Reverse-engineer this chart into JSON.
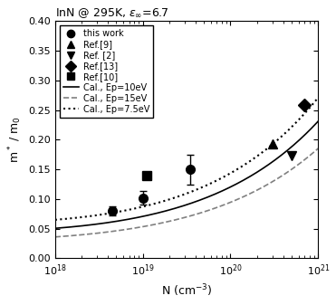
{
  "title": "InN @ 295K, $\\varepsilon_{\\infty}$=6.7",
  "xlabel": "N (cm$^{-3}$)",
  "ylabel": "m* / m$_0$",
  "xlim": [
    1e+18,
    1e+21
  ],
  "ylim": [
    0,
    0.4
  ],
  "yticks": [
    0,
    0.05,
    0.1,
    0.15,
    0.2,
    0.25,
    0.3,
    0.35,
    0.4
  ],
  "this_work": {
    "x": [
      4.5e+18,
      1e+19,
      3.5e+19
    ],
    "y": [
      0.08,
      0.102,
      0.15
    ],
    "yerr": [
      0.008,
      0.012,
      0.025
    ]
  },
  "ref9": {
    "x": [
      3e+20
    ],
    "y": [
      0.193
    ]
  },
  "ref2": {
    "x": [
      5e+20
    ],
    "y": [
      0.173
    ]
  },
  "ref13": {
    "x": [
      7e+20
    ],
    "y": [
      0.258
    ]
  },
  "ref10": {
    "x": [
      1.1e+19
    ],
    "y": [
      0.139
    ]
  },
  "line_Ep10_color": "#000000",
  "line_Ep15_color": "#555555",
  "line_Ep75_color": "#333333",
  "bg_color": "#ffffff"
}
